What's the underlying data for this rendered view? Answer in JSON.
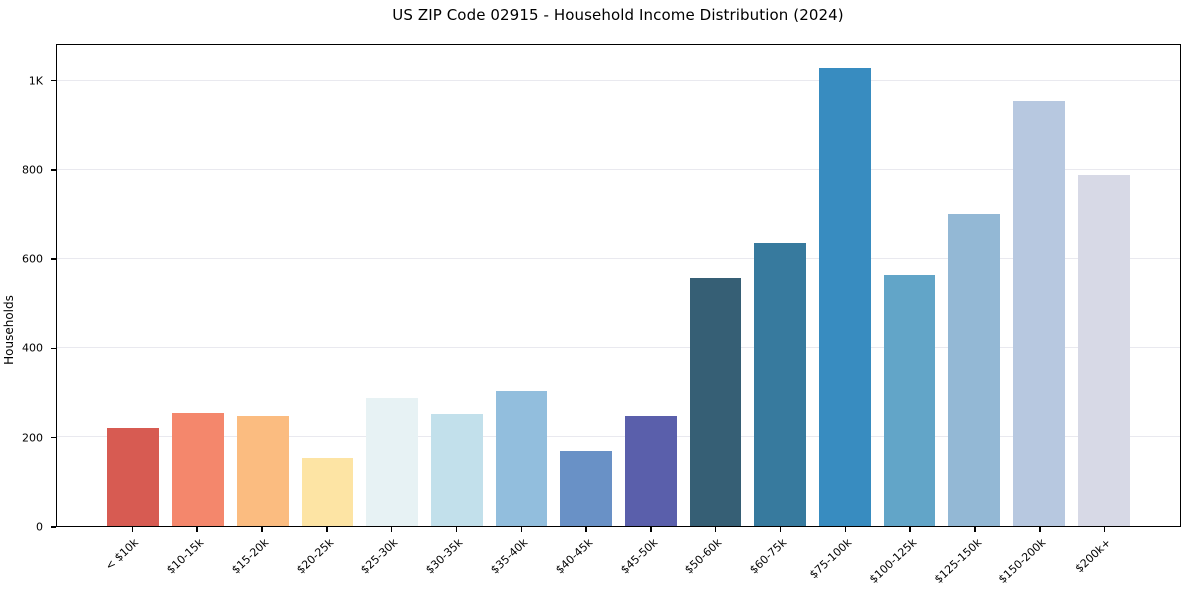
{
  "title": "US ZIP Code 02915 - Household Income Distribution (2024)",
  "chart_data": {
    "type": "bar",
    "title": "US ZIP Code 02915 - Household Income Distribution (2024)",
    "xlabel": "",
    "ylabel": "Households",
    "categories": [
      "< $10k",
      "$10-15k",
      "$15-20k",
      "$20-25k",
      "$25-30k",
      "$30-35k",
      "$35-40k",
      "$40-45k",
      "$45-50k",
      "$50-60k",
      "$60-75k",
      "$75-100k",
      "$100-125k",
      "$125-150k",
      "$150-200k",
      "$200k+"
    ],
    "values": [
      220,
      255,
      248,
      152,
      287,
      253,
      303,
      168,
      247,
      558,
      637,
      1030,
      565,
      702,
      955,
      790
    ],
    "bar_colors": [
      "#d75b52",
      "#f4876c",
      "#fbbc80",
      "#fde4a4",
      "#e7f2f4",
      "#c2e0eb",
      "#92bedd",
      "#6991c6",
      "#5a5fab",
      "#365f75",
      "#377a9e",
      "#388cc0",
      "#62a5c8",
      "#93b8d5",
      "#b7c8e0",
      "#d7d9e6"
    ],
    "y_ticks": [
      {
        "value": 0,
        "label": "0"
      },
      {
        "value": 200,
        "label": "200"
      },
      {
        "value": 400,
        "label": "400"
      },
      {
        "value": 600,
        "label": "600"
      },
      {
        "value": 800,
        "label": "800"
      },
      {
        "value": 1000,
        "label": "1K"
      }
    ],
    "gridline_values": [
      200,
      400,
      600,
      800,
      1000
    ],
    "ylim": [
      0,
      1082
    ],
    "grid": "horizontal-only",
    "legend": "none",
    "background_color": "#ffffff",
    "gridline_color": "#e9e9ef",
    "spine_color": "#000000"
  }
}
